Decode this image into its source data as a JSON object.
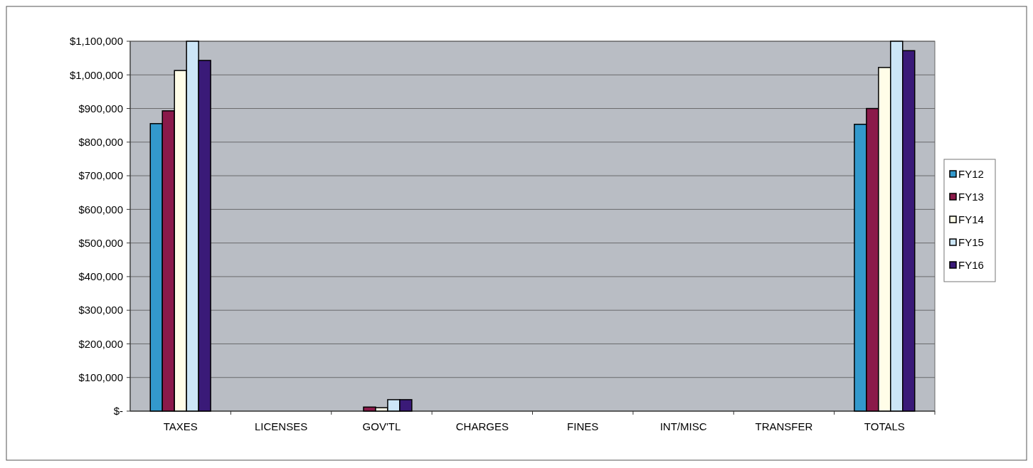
{
  "chart_data": {
    "type": "bar",
    "categories": [
      "TAXES",
      "LICENSES",
      "GOV'TL",
      "CHARGES",
      "FINES",
      "INT/MISC",
      "TRANSFER",
      "TOTALS"
    ],
    "series": [
      {
        "name": "FY12",
        "color": "#3399cc",
        "values": [
          855000,
          0,
          0,
          0,
          0,
          0,
          0,
          853000
        ]
      },
      {
        "name": "FY13",
        "color": "#8b1a4a",
        "values": [
          893000,
          0,
          12000,
          0,
          0,
          0,
          0,
          900000
        ]
      },
      {
        "name": "FY14",
        "color": "#fffde8",
        "values": [
          1013000,
          0,
          10000,
          0,
          0,
          0,
          0,
          1022000
        ]
      },
      {
        "name": "FY15",
        "color": "#cce6f7",
        "values": [
          1100000,
          0,
          34000,
          0,
          0,
          0,
          0,
          1100000
        ]
      },
      {
        "name": "FY16",
        "color": "#3a1a78",
        "values": [
          1043000,
          0,
          34000,
          0,
          0,
          0,
          0,
          1072000
        ]
      }
    ],
    "ylim": [
      0,
      1100000
    ],
    "yticks": [
      {
        "value": 0,
        "label": "$-"
      },
      {
        "value": 100000,
        "label": "$100,000"
      },
      {
        "value": 200000,
        "label": "$200,000"
      },
      {
        "value": 300000,
        "label": "$300,000"
      },
      {
        "value": 400000,
        "label": "$400,000"
      },
      {
        "value": 500000,
        "label": "$500,000"
      },
      {
        "value": 600000,
        "label": "$600,000"
      },
      {
        "value": 700000,
        "label": "$700,000"
      },
      {
        "value": 800000,
        "label": "$800,000"
      },
      {
        "value": 900000,
        "label": "$900,000"
      },
      {
        "value": 1000000,
        "label": "$1,000,000"
      },
      {
        "value": 1100000,
        "label": "$1,100,000"
      }
    ],
    "grid": "y",
    "legend": "right"
  }
}
